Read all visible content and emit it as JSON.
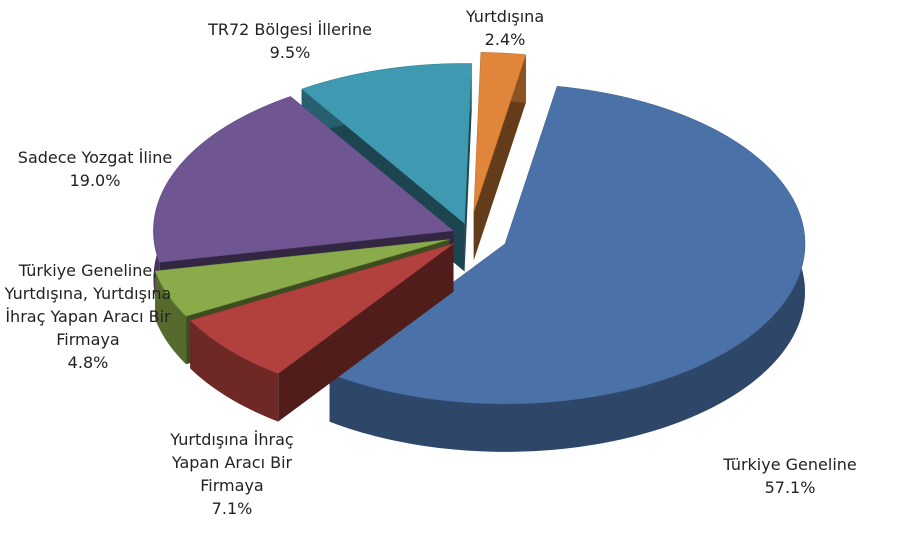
{
  "chart_data": {
    "type": "pie3d",
    "categories": [
      "Türkiye Geneline",
      "Yurtdışına İhraç Yapan Aracı Bir Firmaya",
      "Türkiye Geneline, Yurtdışına, Yurtdışına İhraç Yapan Aracı Bir Firmaya",
      "Sadece Yozgat İline",
      "TR72 Bölgesi İllerine",
      "Yurtdışına"
    ],
    "values": [
      57.1,
      7.1,
      4.8,
      19.0,
      9.5,
      2.4
    ],
    "value_labels": [
      "57.1%",
      "7.1%",
      "4.8%",
      "19.0%",
      "9.5%",
      "2.4%"
    ],
    "colors": [
      "#4a72a8",
      "#b2413d",
      "#8aab4a",
      "#6f5592",
      "#3f9ab1",
      "#e0853a"
    ]
  }
}
